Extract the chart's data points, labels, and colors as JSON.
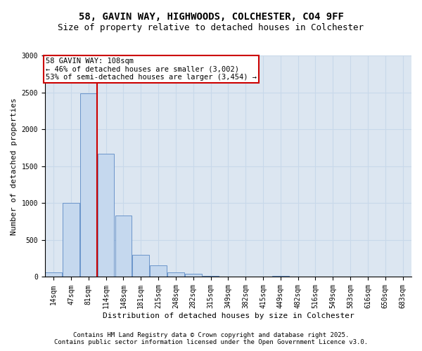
{
  "title_line1": "58, GAVIN WAY, HIGHWOODS, COLCHESTER, CO4 9FF",
  "title_line2": "Size of property relative to detached houses in Colchester",
  "xlabel": "Distribution of detached houses by size in Colchester",
  "ylabel": "Number of detached properties",
  "bar_color": "#c5d8ee",
  "bar_edge_color": "#5b8ac5",
  "grid_color": "#c8d8ea",
  "background_color": "#dce6f1",
  "annotation_box_color": "#cc0000",
  "vline_color": "#cc0000",
  "categories": [
    "14sqm",
    "47sqm",
    "81sqm",
    "114sqm",
    "148sqm",
    "181sqm",
    "215sqm",
    "248sqm",
    "282sqm",
    "315sqm",
    "349sqm",
    "382sqm",
    "415sqm",
    "449sqm",
    "482sqm",
    "516sqm",
    "549sqm",
    "583sqm",
    "616sqm",
    "650sqm",
    "683sqm"
  ],
  "values": [
    60,
    1000,
    2490,
    1670,
    830,
    300,
    160,
    65,
    45,
    10,
    0,
    0,
    0,
    10,
    0,
    0,
    0,
    0,
    0,
    0,
    0
  ],
  "ylim": [
    0,
    3000
  ],
  "yticks": [
    0,
    500,
    1000,
    1500,
    2000,
    2500,
    3000
  ],
  "vline_x_index": 3,
  "annotation_text": "58 GAVIN WAY: 108sqm\n← 46% of detached houses are smaller (3,002)\n53% of semi-detached houses are larger (3,454) →",
  "footer_line1": "Contains HM Land Registry data © Crown copyright and database right 2025.",
  "footer_line2": "Contains public sector information licensed under the Open Government Licence v3.0.",
  "title_fontsize": 10,
  "subtitle_fontsize": 9,
  "axis_label_fontsize": 8,
  "tick_fontsize": 7,
  "annotation_fontsize": 7.5,
  "footer_fontsize": 6.5
}
